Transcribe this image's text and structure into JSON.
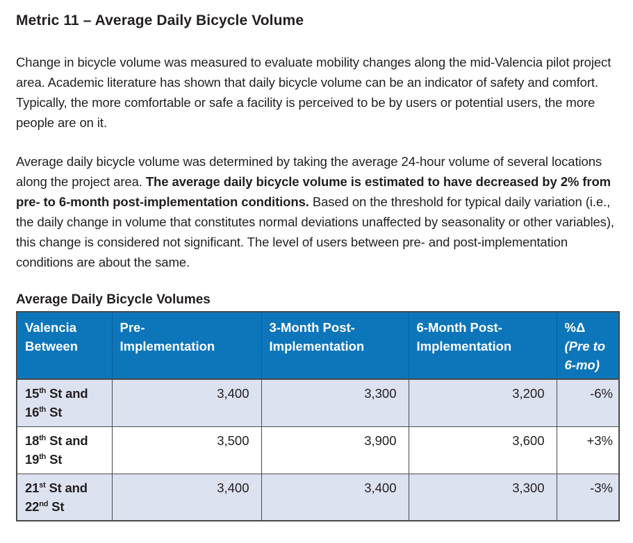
{
  "document": {
    "title": "Metric 11 – Average Daily Bicycle Volume",
    "paragraph1": [
      {
        "text": "Change in bicycle volume was measured to evaluate mobility changes along the mid-Valencia pilot project area. Academic literature has shown that daily bicycle volume can be an indicator of safety and comfort. Typically, the more comfortable or safe a facility is perceived to be by users or potential users, the more people are on it."
      }
    ],
    "paragraph2": [
      {
        "text": "Average daily bicycle volume was determined by taking the average 24-hour volume of several locations along the project area. "
      },
      {
        "text": "The average daily bicycle volume is estimated to have decreased by 2% from pre- to 6-month post-implementation conditions.",
        "bold": true
      },
      {
        "text": " Based on the threshold for typical daily variation (i.e., the daily change in volume that constitutes normal deviations unaffected by seasonality or other variables), this change is considered not significant. The level of users between pre- and post-implementation conditions are about the same."
      }
    ],
    "table_title": "Average Daily Bicycle Volumes"
  },
  "table": {
    "header": [
      {
        "line1": "Valencia",
        "line2": "Between"
      },
      {
        "line1": "Pre-",
        "line2": "Implementation"
      },
      {
        "line1": "3-Month Post-",
        "line2": "Implementation"
      },
      {
        "line1": "6-Month Post-",
        "line2": "Implementation"
      },
      {
        "line1": "%Δ",
        "note_line1": "(Pre to",
        "note_line2": "6-mo)"
      }
    ],
    "rows": [
      {
        "street": [
          "15",
          "th",
          " St and",
          "16",
          "th",
          " St"
        ],
        "pre": "3,400",
        "post3": "3,300",
        "post6": "3,200",
        "delta": "-6%"
      },
      {
        "street": [
          "18",
          "th",
          " St and",
          "19",
          "th",
          " St"
        ],
        "pre": "3,500",
        "post3": "3,900",
        "post6": "3,600",
        "delta": "+3%"
      },
      {
        "street": [
          "21",
          "st",
          " St and",
          "22",
          "nd",
          " St"
        ],
        "pre": "3,400",
        "post3": "3,400",
        "post6": "3,300",
        "delta": "-3%"
      }
    ]
  },
  "colors": {
    "header_bg": "#0d76bb",
    "header_divider": "#0a5f9e",
    "row_stripe_bg": "#dde2f1",
    "table_border": "#4a4a4a",
    "body_text": "#231f20",
    "header_text": "#ffffff"
  }
}
